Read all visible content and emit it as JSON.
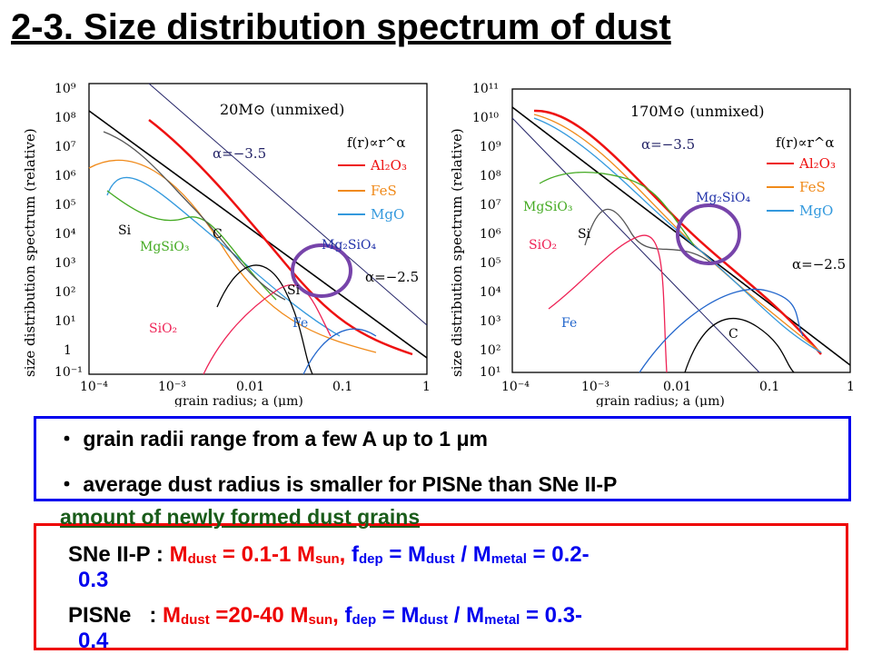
{
  "title": "2-3. Size distribution spectrum of dust",
  "left_panel": {
    "model": "20M⊙ (unmixed)",
    "ylabel": "size distribution spectrum (relative)",
    "xlabel": "grain radius; a (μm)",
    "yticks": [
      "10⁹",
      "10⁸",
      "10⁷",
      "10⁶",
      "10⁵",
      "10⁴",
      "10³",
      "10²",
      "10¹",
      "1",
      "10⁻¹"
    ],
    "xticks": [
      "10⁻⁴",
      "10⁻³",
      "0.01",
      "0.1",
      "1"
    ],
    "labels": {
      "alpha35": "α=−3.5",
      "alpha25": "α=−2.5",
      "fr": "f(r)∝r^α",
      "si": "Si",
      "si2": "Si",
      "c": "C",
      "mgsio3": "MgSiO₃",
      "mg2sio4": "Mg₂SiO₄",
      "sio2": "SiO₂",
      "fe": "Fe"
    }
  },
  "right_panel": {
    "model": "170M⊙ (unmixed)",
    "ylabel": "size distribution spectrum (relative)",
    "xlabel": "grain radius; a (μm)",
    "yticks": [
      "10¹¹",
      "10¹⁰",
      "10⁹",
      "10⁸",
      "10⁷",
      "10⁶",
      "10⁵",
      "10⁴",
      "10³",
      "10²",
      "10¹"
    ],
    "xticks": [
      "10⁻⁴",
      "10⁻³",
      "0.01",
      "0.1",
      "1"
    ],
    "labels": {
      "alpha35": "α=−3.5",
      "alpha25": "α=−2.5",
      "fr": "f(r)∝r^α",
      "si": "Si",
      "c": "C",
      "mgsio3": "MgSiO₃",
      "mg2sio4": "Mg₂SiO₄",
      "sio2": "SiO₂",
      "fe": "Fe"
    }
  },
  "legend": [
    {
      "name": "Al₂O₃",
      "color": "#ee1111"
    },
    {
      "name": "FeS",
      "color": "#f08a1a"
    },
    {
      "name": "MgO",
      "color": "#3399dd"
    }
  ],
  "bullets": [
    "・ grain radii range from a few A up to 1 μm",
    "・ average dust radius is smaller for PISNe than SNe II-P"
  ],
  "amount_heading": "amount of newly formed dust grains",
  "sne": {
    "label": "SNe II-P :",
    "mdust": "M",
    "dust": "dust",
    "eq1": " = 0.1-1 M",
    "sun": "sun",
    "comma": ",",
    "f": "f",
    "dep": "dep",
    "eq2": " = M",
    "dust2": "dust",
    "slash": " / M",
    "metal": "metal",
    "eq3": " = 0.2-",
    "cont": "0.3"
  },
  "pisne": {
    "label": "PISNe   :",
    "mdust": "M",
    "dust": "dust",
    "eq1": " =20-40 M",
    "sun": "sun",
    "comma": ",",
    "f": "f",
    "dep": "dep",
    "eq2": " = M",
    "dust2": "dust",
    "slash": " / M",
    "metal": "metal",
    "eq3": " = 0.3-",
    "cont": "0.4"
  },
  "colors": {
    "al2o3": "#ee1111",
    "fes": "#f08a1a",
    "mgo": "#3399dd",
    "mgsio3": "#44aa22",
    "mg2sio4": "#2233aa",
    "sio2": "#ee2255",
    "fe": "#2266cc",
    "black": "#000000",
    "circle": "#7744aa",
    "alpha35line": "#222266"
  }
}
